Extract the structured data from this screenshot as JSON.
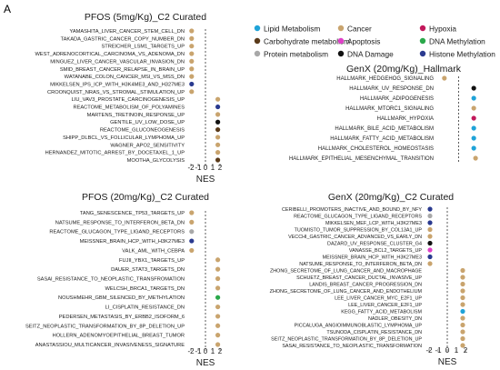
{
  "panel_letter": "A",
  "legend": {
    "items": [
      {
        "label": "Lipid Metabolism",
        "color": "#1fa3d8"
      },
      {
        "label": "Cancer",
        "color": "#c9a46e"
      },
      {
        "label": "Hypoxia",
        "color": "#c2185b"
      },
      {
        "label": "Carbohydrate metabolism",
        "color": "#5a3a1a"
      },
      {
        "label": "Apoptosis",
        "color": "#e040c8"
      },
      {
        "label": "DNA Methylation",
        "color": "#2aa84a"
      },
      {
        "label": "Protein metabolism",
        "color": "#a8a8a8"
      },
      {
        "label": "DNA Damage",
        "color": "#111111"
      },
      {
        "label": "Histone Methylation",
        "color": "#2a3a8f"
      }
    ]
  },
  "chart_data": [
    {
      "type": "scatter",
      "title": "PFOS (5mg/Kg)_C2 Curated",
      "xlabel": "NES",
      "xlim": [
        -2.5,
        2.5
      ],
      "xticks": [
        "-2",
        "-1",
        "0",
        "1",
        "2"
      ],
      "points": [
        {
          "label": "YAMASHITA_LIVER_CANCER_STEM_CELL_DN",
          "x": -1.9,
          "cat": "Cancer"
        },
        {
          "label": "TAKADA_GASTRIC_CANCER_COPY_NUMBER_DN",
          "x": -1.9,
          "cat": "Cancer"
        },
        {
          "label": "STREICHER_LSM1_TARGETS_UP",
          "x": -1.9,
          "cat": "Cancer"
        },
        {
          "label": "WEST_ADRENOCORTICAL_CARCINOMA_VS_ADENOMA_DN",
          "x": -1.9,
          "cat": "Cancer"
        },
        {
          "label": "MINGUEZ_LIVER_CANCER_VASCULAR_INVASION_DN",
          "x": -1.9,
          "cat": "Cancer"
        },
        {
          "label": "SMID_BREAST_CANCER_RELAPSE_IN_BRAIN_UP",
          "x": -1.9,
          "cat": "Cancer"
        },
        {
          "label": "WATANABE_COLON_CANCER_MSI_VS_MSS_DN",
          "x": -1.9,
          "cat": "Cancer"
        },
        {
          "label": "MIKKELSEN_IPS_ICP_WITH_H3K4ME3_AND_H327ME3",
          "x": -1.9,
          "cat": "Histone Methylation"
        },
        {
          "label": "CROONQUIST_NRAS_VS_STROMAL_STIMULATION_UP",
          "x": -1.9,
          "cat": "Cancer"
        },
        {
          "label": "LIU_VAV3_PROSTATE_CARCINOGENESIS_UP",
          "x": 1.7,
          "cat": "Cancer"
        },
        {
          "label": "REACTOME_METABOLISM_OF_POLYAMINES",
          "x": 1.7,
          "cat": "Histone Methylation"
        },
        {
          "label": "MARTENS_TRETINOIN_RESPONSE_UP",
          "x": 1.7,
          "cat": "Cancer"
        },
        {
          "label": "GENTILE_UV_LOW_DOSE_UP",
          "x": 1.7,
          "cat": "DNA Damage"
        },
        {
          "label": "REACTOME_GLUCONEOGENESIS",
          "x": 1.7,
          "cat": "Carbohydrate metabolism"
        },
        {
          "label": "SHIPP_DLBCL_VS_FOLLICULAR_LYMPHOMA_UP",
          "x": 1.7,
          "cat": "Cancer"
        },
        {
          "label": "WAGNER_APO2_SENSITIVITY",
          "x": 1.7,
          "cat": "Cancer"
        },
        {
          "label": "HERNANDEZ_MITOTIC_ARREST_BY_DOCETAXEL_1_UP",
          "x": 1.7,
          "cat": "Cancer"
        },
        {
          "label": "MOOTHA_GLYCOLYSIS",
          "x": 1.7,
          "cat": "Carbohydrate metabolism"
        }
      ]
    },
    {
      "type": "scatter",
      "title": "GenX (20mg/Kg)_Hallmark",
      "xlabel": "",
      "xlim": [
        -2.5,
        2.5
      ],
      "xticks": [],
      "points": [
        {
          "label": "HALLMARK_HEDGEHOG_SIGNALING",
          "x": -1.6,
          "cat": "Cancer"
        },
        {
          "label": "HALLMARK_UV_RESPONSE_DN",
          "x": 1.7,
          "cat": "DNA Damage"
        },
        {
          "label": "HALLMARK_ADIPOGENESIS",
          "x": 1.7,
          "cat": "Lipid Metabolism"
        },
        {
          "label": "HALLMARK_MTORC1_SIGNALING",
          "x": 1.7,
          "cat": "Cancer"
        },
        {
          "label": "HALLMARK_HYPOXIA",
          "x": 1.7,
          "cat": "Hypoxia"
        },
        {
          "label": "HALLMARK_BILE_ACID_METABOLISM",
          "x": 1.7,
          "cat": "Lipid Metabolism"
        },
        {
          "label": "HALLMARK_FATTY_ACID_METABOLISM",
          "x": 1.7,
          "cat": "Lipid Metabolism"
        },
        {
          "label": "HALLMARK_CHOLESTEROL_HOMEOSTASIS",
          "x": 1.7,
          "cat": "Lipid Metabolism"
        },
        {
          "label": "HALLMARK_EPITHELIAL_MESENCHYMAL_TRANSITION",
          "x": 1.9,
          "cat": "Cancer"
        }
      ]
    },
    {
      "type": "scatter",
      "title": "PFOS (20mg/Kg)_C2 Curated",
      "xlabel": "NES",
      "xlim": [
        -2.5,
        2.5
      ],
      "xticks": [
        "-2",
        "-1",
        "0",
        "1",
        "2"
      ],
      "points": [
        {
          "label": "TANG_SENESCENCE_TP53_TARGETS_UP",
          "x": -1.9,
          "cat": "Cancer"
        },
        {
          "label": "NATSUME_RESPONSE_TO_INTERFERON_BETA_DN",
          "x": -1.9,
          "cat": "Cancer"
        },
        {
          "label": "REACTOME_GLUCAGON_TYPE_LIGAND_RECEPTORS",
          "x": -1.9,
          "cat": "Protein metabolism"
        },
        {
          "label": "MEISSNER_BRAIN_HCP_WITH_H3K27ME3",
          "x": -1.9,
          "cat": "Histone Methylation"
        },
        {
          "label": "VALK_AML_WITH_CEBPA",
          "x": -1.9,
          "cat": "Cancer"
        },
        {
          "label": "FUJII_YBX1_TARGETS_UP",
          "x": 1.7,
          "cat": "Cancer"
        },
        {
          "label": "DAUER_STAT3_TARGETS_DN",
          "x": 1.7,
          "cat": "Cancer"
        },
        {
          "label": "SASAI_RESISTANCE_TO_NEOPLASTIC_TRANSFROMATION",
          "x": 1.7,
          "cat": "Cancer"
        },
        {
          "label": "WELCSH_BRCA1_TARGETS_DN",
          "x": 1.7,
          "cat": "Cancer"
        },
        {
          "label": "NOUSHMEHR_GBM_SILENCED_BY_METHYLATION",
          "x": 1.7,
          "cat": "DNA Methylation"
        },
        {
          "label": "LI_CISPLATIN_RESISTANCE_DN",
          "x": 1.7,
          "cat": "Cancer"
        },
        {
          "label": "PEDERSEN_METASTASIS_BY_ERBB2_ISOFORM_6",
          "x": 1.7,
          "cat": "Cancer"
        },
        {
          "label": "SEITZ_NEOPLASTIC_TRANSFORMATION_BY_8P_DELETION_UP",
          "x": 1.7,
          "cat": "Cancer"
        },
        {
          "label": "HOLLERN_ADENOMYOEPITHELIAL_BREAST_TUMOR",
          "x": 1.7,
          "cat": "Cancer"
        },
        {
          "label": "ANASTASSIOU_MULTICANCER_INVASIVENESS_SIGNATURE",
          "x": 1.7,
          "cat": "Cancer"
        }
      ]
    },
    {
      "type": "scatter",
      "title": "GenX (20mg/Kg)_C2 Curated",
      "xlabel": "NES",
      "xlim": [
        -2.5,
        2.5
      ],
      "xticks": [
        "-2",
        "-1",
        "0",
        "1",
        "2"
      ],
      "points": [
        {
          "label": "CERIBELLI_PROMOTERS_INACTIVE_AND_BOUND_BY_NFY",
          "x": -1.9,
          "cat": "Histone Methylation"
        },
        {
          "label": "REACTOME_GLUCAGON_TYPE_LIGAND_RECEPTORS",
          "x": -1.9,
          "cat": "Protein metabolism"
        },
        {
          "label": "MIKKELSEN_MEF_LCP_WITH_H3K27ME3",
          "x": -1.9,
          "cat": "Histone Methylation"
        },
        {
          "label": "TUOMISTO_TUMOR_SUPPRESSION_BY_COL13A1_UP",
          "x": -1.9,
          "cat": "Cancer"
        },
        {
          "label": "VECCHI_GASTRIC_CANCER_ADVANCED_VS_EARLY_DN",
          "x": -1.9,
          "cat": "Cancer"
        },
        {
          "label": "DAZARD_UV_RESPONSE_CLUSTER_G4",
          "x": -1.9,
          "cat": "DNA Damage"
        },
        {
          "label": "VANASSE_BCL2_TARGETS_UP",
          "x": -1.9,
          "cat": "Apoptosis"
        },
        {
          "label": "MEISSNER_BRAIN_HCP_WITH_H3K27ME3",
          "x": -1.9,
          "cat": "Histone Methylation"
        },
        {
          "label": "NATSUME_RESPONSE_TO_INTERFERON_BETA_DN",
          "x": -1.9,
          "cat": "Cancer"
        },
        {
          "label": "ZHONG_SECRETOME_OF_LUNG_CANCER_AND_MACROPHAGE",
          "x": 1.7,
          "cat": "Cancer"
        },
        {
          "label": "SCHUETZ_BREAST_CANCER_DUCTAL_INVASIVE_UP",
          "x": 1.7,
          "cat": "Cancer"
        },
        {
          "label": "LANDIS_BREAST_CANCER_PROGRESSION_DN",
          "x": 1.7,
          "cat": "Cancer"
        },
        {
          "label": "ZHONG_SECRETOME_OF_LUNG_CANCER_AND_ENDOTHELIUM",
          "x": 1.7,
          "cat": "Cancer"
        },
        {
          "label": "LEE_LIVER_CANCER_MYC_E2F1_UP",
          "x": 1.7,
          "cat": "Cancer"
        },
        {
          "label": "LEE_LIVER_CANCER_E2F1_UP",
          "x": 1.7,
          "cat": "Cancer"
        },
        {
          "label": "KEGG_FATTY_ACID_METABOLISM",
          "x": 1.7,
          "cat": "Lipid Metabolism"
        },
        {
          "label": "NADLER_OBESITY_DN",
          "x": 1.7,
          "cat": "Cancer"
        },
        {
          "label": "PICCALUGA_ANGIOIMMUNOBLASTIC_LYMPHOMA_UP",
          "x": 1.7,
          "cat": "Cancer"
        },
        {
          "label": "TSUNODA_CISPLATIN_RESISTANCE_DN",
          "x": 1.7,
          "cat": "Cancer"
        },
        {
          "label": "SEITZ_NEOPLASTIC_TRANSFORMATION_BY_8P_DELETION_UP",
          "x": 1.7,
          "cat": "Cancer"
        },
        {
          "label": "SASAI_RESISTANCE_TO_NEOPLASTIC_TRANSFORMATION",
          "x": 1.7,
          "cat": "Cancer"
        }
      ]
    }
  ]
}
